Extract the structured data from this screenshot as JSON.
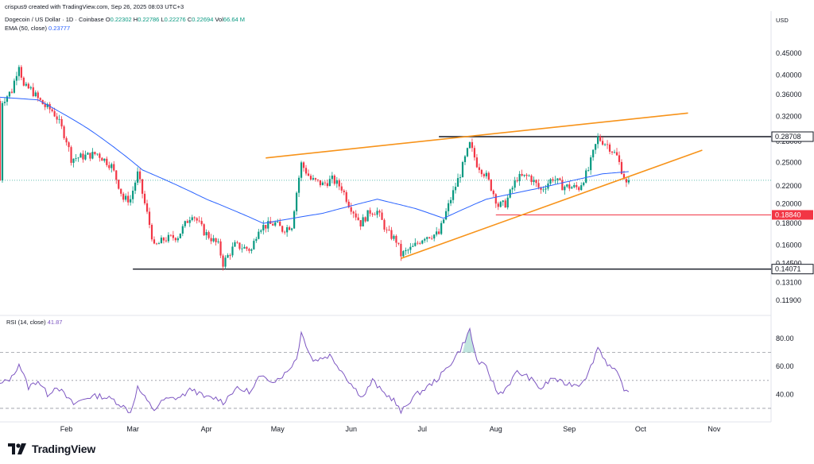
{
  "header": {
    "credit": "crispus9 created with TradingView.com, Sep 26, 2025 08:03 UTC+3",
    "symbol": "Dogecoin / US Dollar · 1D · Coinbase",
    "o_label": "O",
    "o_value": "0.22302",
    "h_label": "H",
    "h_value": "0.22786",
    "l_label": "L",
    "l_value": "0.22276",
    "c_label": "C",
    "c_value": "0.22694",
    "vol_label": "Vol",
    "vol_value": "66.64 M",
    "ema_label": "EMA (50, close)",
    "ema_value": "0.23777",
    "currency": "USD"
  },
  "rsi_header": {
    "label": "RSI (14, close)",
    "value": "41.87"
  },
  "brand": {
    "text": "TradingView",
    "logo_icon": "tradingview-logo-icon"
  },
  "colors": {
    "up": "#089981",
    "down": "#f23645",
    "ema": "#2962ff",
    "rsi": "#7e57c2",
    "trendline": "#f7931a",
    "level": "#131722",
    "support": "#f23645"
  },
  "chart_data": [
    {
      "type": "candlestick",
      "title": "Dogecoin / US Dollar · 1D · Coinbase",
      "y_scale": "log",
      "y_ticks": [
        "0.45000",
        "0.40000",
        "0.36000",
        "0.32000",
        "0.28000",
        "0.25000",
        "0.22000",
        "0.20000",
        "0.18000",
        "0.16000",
        "0.14500",
        "0.13100",
        "0.11900"
      ],
      "x_ticks": [
        "Feb",
        "Mar",
        "Apr",
        "May",
        "Jun",
        "Jul",
        "Aug",
        "Sep",
        "Oct",
        "Nov"
      ],
      "x_range": [
        "2025-01-04",
        "2025-11-25"
      ],
      "ylim": [
        0.112,
        0.505
      ],
      "last_price": 0.22694,
      "levels": [
        {
          "value": 0.28708,
          "label": "0.28708",
          "from": "2025-07-08",
          "style": "black"
        },
        {
          "value": 0.1884,
          "label": "0.18840",
          "from": "2025-08-01",
          "style": "red"
        },
        {
          "value": 0.14071,
          "label": "0.14071",
          "from": "2025-03-01",
          "style": "black"
        }
      ],
      "trendlines": [
        {
          "from": [
            "2025-04-26",
            0.256
          ],
          "to": [
            "2025-10-21",
            0.326
          ]
        },
        {
          "from": [
            "2025-06-22",
            0.149
          ],
          "to": [
            "2025-10-27",
            0.267
          ]
        }
      ],
      "close_anchors": [
        [
          "2025-01-05",
          0.348
        ],
        [
          "2025-01-09",
          0.368
        ],
        [
          "2025-01-12",
          0.425
        ],
        [
          "2025-01-14",
          0.375
        ],
        [
          "2025-01-17",
          0.37
        ],
        [
          "2025-01-20",
          0.352
        ],
        [
          "2025-01-23",
          0.338
        ],
        [
          "2025-01-26",
          0.33
        ],
        [
          "2025-01-28",
          0.318
        ],
        [
          "2025-02-01",
          0.282
        ],
        [
          "2025-02-03",
          0.255
        ],
        [
          "2025-02-08",
          0.258
        ],
        [
          "2025-02-14",
          0.262
        ],
        [
          "2025-02-20",
          0.245
        ],
        [
          "2025-02-25",
          0.205
        ],
        [
          "2025-02-28",
          0.205
        ],
        [
          "2025-03-03",
          0.235
        ],
        [
          "2025-03-06",
          0.2
        ],
        [
          "2025-03-10",
          0.158
        ],
        [
          "2025-03-14",
          0.165
        ],
        [
          "2025-03-20",
          0.168
        ],
        [
          "2025-03-26",
          0.19
        ],
        [
          "2025-03-31",
          0.172
        ],
        [
          "2025-04-06",
          0.16
        ],
        [
          "2025-04-08",
          0.145
        ],
        [
          "2025-04-13",
          0.16
        ],
        [
          "2025-04-20",
          0.156
        ],
        [
          "2025-04-23",
          0.176
        ],
        [
          "2025-04-30",
          0.18
        ],
        [
          "2025-05-03",
          0.174
        ],
        [
          "2025-05-07",
          0.178
        ],
        [
          "2025-05-11",
          0.248
        ],
        [
          "2025-05-15",
          0.228
        ],
        [
          "2025-05-20",
          0.222
        ],
        [
          "2025-05-24",
          0.228
        ],
        [
          "2025-05-28",
          0.218
        ],
        [
          "2025-05-31",
          0.2
        ],
        [
          "2025-06-05",
          0.18
        ],
        [
          "2025-06-09",
          0.192
        ],
        [
          "2025-06-12",
          0.192
        ],
        [
          "2025-06-16",
          0.172
        ],
        [
          "2025-06-20",
          0.164
        ],
        [
          "2025-06-22",
          0.152
        ],
        [
          "2025-06-27",
          0.158
        ],
        [
          "2025-07-02",
          0.168
        ],
        [
          "2025-07-08",
          0.17
        ],
        [
          "2025-07-12",
          0.198
        ],
        [
          "2025-07-17",
          0.235
        ],
        [
          "2025-07-21",
          0.275
        ],
        [
          "2025-07-24",
          0.248
        ],
        [
          "2025-07-28",
          0.232
        ],
        [
          "2025-08-02",
          0.198
        ],
        [
          "2025-08-05",
          0.2
        ],
        [
          "2025-08-10",
          0.23
        ],
        [
          "2025-08-15",
          0.232
        ],
        [
          "2025-08-20",
          0.215
        ],
        [
          "2025-08-25",
          0.23
        ],
        [
          "2025-08-29",
          0.22
        ],
        [
          "2025-09-05",
          0.218
        ],
        [
          "2025-09-09",
          0.24
        ],
        [
          "2025-09-13",
          0.285
        ],
        [
          "2025-09-17",
          0.275
        ],
        [
          "2025-09-21",
          0.258
        ],
        [
          "2025-09-23",
          0.24
        ],
        [
          "2025-09-25",
          0.222
        ],
        [
          "2025-09-26",
          0.22694
        ]
      ],
      "ema_anchors": [
        [
          "2025-01-04",
          0.355
        ],
        [
          "2025-01-20",
          0.35
        ],
        [
          "2025-02-10",
          0.3
        ],
        [
          "2025-03-05",
          0.24
        ],
        [
          "2025-04-01",
          0.205
        ],
        [
          "2025-04-25",
          0.18
        ],
        [
          "2025-05-20",
          0.19
        ],
        [
          "2025-06-12",
          0.205
        ],
        [
          "2025-06-28",
          0.195
        ],
        [
          "2025-07-10",
          0.185
        ],
        [
          "2025-07-28",
          0.205
        ],
        [
          "2025-08-20",
          0.218
        ],
        [
          "2025-09-15",
          0.235
        ],
        [
          "2025-09-26",
          0.2378
        ]
      ]
    },
    {
      "type": "line",
      "title": "RSI (14, close)",
      "y_ticks": [
        "80.00",
        "60.00",
        "40.00"
      ],
      "ylim": [
        22,
        92
      ],
      "reference_lines": [
        70,
        50,
        30
      ],
      "last_value": 41.87,
      "anchors": [
        [
          "2025-01-04",
          47
        ],
        [
          "2025-01-09",
          52
        ],
        [
          "2025-01-12",
          62
        ],
        [
          "2025-01-16",
          45
        ],
        [
          "2025-01-20",
          50
        ],
        [
          "2025-01-24",
          40
        ],
        [
          "2025-01-28",
          46
        ],
        [
          "2025-02-01",
          38
        ],
        [
          "2025-02-04",
          33
        ],
        [
          "2025-02-10",
          38
        ],
        [
          "2025-02-15",
          39
        ],
        [
          "2025-02-21",
          36
        ],
        [
          "2025-02-26",
          30
        ],
        [
          "2025-02-28",
          27
        ],
        [
          "2025-03-03",
          45
        ],
        [
          "2025-03-07",
          35
        ],
        [
          "2025-03-10",
          29
        ],
        [
          "2025-03-14",
          36
        ],
        [
          "2025-03-21",
          38
        ],
        [
          "2025-03-26",
          44
        ],
        [
          "2025-03-31",
          38
        ],
        [
          "2025-04-06",
          37
        ],
        [
          "2025-04-08",
          34
        ],
        [
          "2025-04-13",
          44
        ],
        [
          "2025-04-20",
          42
        ],
        [
          "2025-04-23",
          52
        ],
        [
          "2025-04-30",
          50
        ],
        [
          "2025-05-05",
          56
        ],
        [
          "2025-05-09",
          66
        ],
        [
          "2025-05-11",
          84
        ],
        [
          "2025-05-16",
          64
        ],
        [
          "2025-05-23",
          68
        ],
        [
          "2025-05-28",
          57
        ],
        [
          "2025-06-02",
          45
        ],
        [
          "2025-06-06",
          38
        ],
        [
          "2025-06-10",
          50
        ],
        [
          "2025-06-14",
          42
        ],
        [
          "2025-06-19",
          36
        ],
        [
          "2025-06-22",
          27
        ],
        [
          "2025-06-27",
          38
        ],
        [
          "2025-07-03",
          45
        ],
        [
          "2025-07-08",
          52
        ],
        [
          "2025-07-12",
          60
        ],
        [
          "2025-07-17",
          72
        ],
        [
          "2025-07-21",
          86
        ],
        [
          "2025-07-24",
          64
        ],
        [
          "2025-07-28",
          59
        ],
        [
          "2025-08-02",
          40
        ],
        [
          "2025-08-05",
          44
        ],
        [
          "2025-08-10",
          56
        ],
        [
          "2025-08-15",
          52
        ],
        [
          "2025-08-20",
          44
        ],
        [
          "2025-08-25",
          52
        ],
        [
          "2025-08-29",
          48
        ],
        [
          "2025-09-05",
          47
        ],
        [
          "2025-09-09",
          55
        ],
        [
          "2025-09-13",
          74
        ],
        [
          "2025-09-17",
          62
        ],
        [
          "2025-09-21",
          55
        ],
        [
          "2025-09-23",
          48
        ],
        [
          "2025-09-25",
          41
        ],
        [
          "2025-09-26",
          41.87
        ]
      ]
    }
  ]
}
